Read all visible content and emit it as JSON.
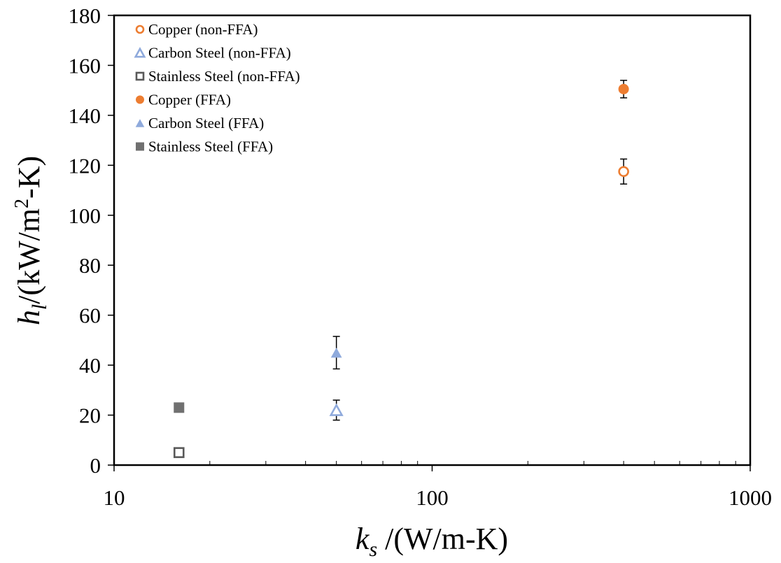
{
  "chart_data": {
    "type": "scatter",
    "title": "",
    "xlabel_var": "k",
    "xlabel_sub": "s",
    "xlabel_units": " /(W/m-K)",
    "ylabel_var": "h",
    "ylabel_sub": "l",
    "ylabel_units_a": "/(kW/m",
    "ylabel_units_sup": "2",
    "ylabel_units_b": "-K)",
    "xscale": "log",
    "xlim": [
      10,
      1000
    ],
    "ylim": [
      0,
      180
    ],
    "x_ticks": [
      10,
      100,
      1000
    ],
    "x_tick_labels": [
      "10",
      "100",
      "1000"
    ],
    "y_ticks": [
      0,
      20,
      40,
      60,
      80,
      100,
      120,
      140,
      160,
      180
    ],
    "y_tick_labels": [
      "0",
      "20",
      "40",
      "60",
      "80",
      "100",
      "120",
      "140",
      "160",
      "180"
    ],
    "grid": false,
    "legend_position": "top-left",
    "series": [
      {
        "name": "Copper (non-FFA)",
        "marker": "circle",
        "filled": false,
        "color": "#ED7D31",
        "points": [
          {
            "x": 400,
            "y": 117.5,
            "err": 5
          }
        ]
      },
      {
        "name": "Carbon Steel (non-FFA)",
        "marker": "triangle",
        "filled": false,
        "color": "#8FAADC",
        "points": [
          {
            "x": 50,
            "y": 22,
            "err": 4
          }
        ]
      },
      {
        "name": "Stainless Steel (non-FFA)",
        "marker": "square",
        "filled": false,
        "color": "#595959",
        "points": [
          {
            "x": 16,
            "y": 5,
            "err": 0.8
          }
        ]
      },
      {
        "name": "Copper (FFA)",
        "marker": "circle",
        "filled": true,
        "color": "#ED7D31",
        "points": [
          {
            "x": 400,
            "y": 150.5,
            "err": 3.5
          }
        ]
      },
      {
        "name": "Carbon Steel (FFA)",
        "marker": "triangle",
        "filled": true,
        "color": "#8FAADC",
        "points": [
          {
            "x": 50,
            "y": 45,
            "err": 6.5
          }
        ]
      },
      {
        "name": "Stainless Steel (FFA)",
        "marker": "square",
        "filled": true,
        "color": "#707070",
        "points": [
          {
            "x": 16,
            "y": 23,
            "err": 0
          }
        ]
      }
    ]
  }
}
